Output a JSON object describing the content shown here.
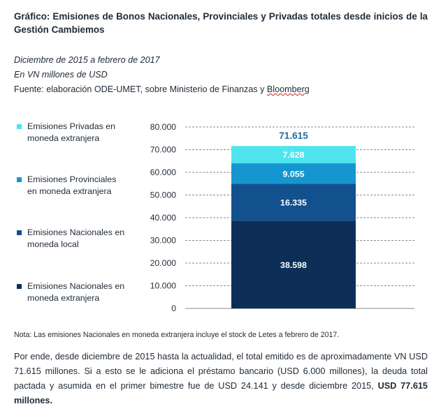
{
  "header": {
    "title": "Gráfico: Emisiones de Bonos Nacionales, Provinciales y Privadas totales desde inicios de la Gestión Cambiemos",
    "period": "Diciembre de 2015 a febrero de 2017",
    "units": "En VN millones de USD",
    "source_prefix": "Fuente: elaboración ODE-UMET, sobre Ministerio de Finanzas y ",
    "source_word": "Bloomberg"
  },
  "chart_data": {
    "type": "bar",
    "stacked": true,
    "categories": [
      ""
    ],
    "series": [
      {
        "name": "Emisiones Nacionales en moneda extranjera",
        "values": [
          38598
        ],
        "label": "38.598",
        "color": "#0d2f57"
      },
      {
        "name": "Emisiones Nacionales en moneda local",
        "values": [
          16335
        ],
        "label": "16.335",
        "color": "#13508e"
      },
      {
        "name": "Emisiones Provinciales en moneda extranjera",
        "values": [
          9055
        ],
        "label": "9.055",
        "color": "#1596cf"
      },
      {
        "name": "Emisiones Privadas en moneda extranjera",
        "values": [
          7628
        ],
        "label": "7.628",
        "color": "#4ee5ef"
      }
    ],
    "total_label": "71.615",
    "ylim": [
      0,
      80000
    ],
    "yticks": [
      0,
      10000,
      20000,
      30000,
      40000,
      50000,
      60000,
      70000,
      80000
    ],
    "ytick_labels": [
      "0",
      "10.000",
      "20.000",
      "30.000",
      "40.000",
      "50.000",
      "60.000",
      "70.000",
      "80.000"
    ],
    "grid": true,
    "legend": "left"
  },
  "legend": [
    {
      "line1": "Emisiones Privadas en",
      "line2": "moneda extranjera",
      "color": "#4ee5ef"
    },
    {
      "line1": "Emisiones Provinciales",
      "line2": "en moneda extranjera",
      "color": "#1596cf"
    },
    {
      "line1": "Emisiones Nacionales en",
      "line2": "moneda local",
      "color": "#13508e"
    },
    {
      "line1": "Emisiones Nacionales en",
      "line2": "moneda extranjera",
      "color": "#0d2f57"
    }
  ],
  "note": "Nota:  Las emisiones Nacionales en moneda extranjera incluye el stock de Letes a febrero de 2017.",
  "paragraph": {
    "text": "Por ende, desde diciembre de 2015 hasta la actualidad, el total emitido es de aproximadamente VN USD 71.615 millones. Si a esto se le adiciona el préstamo bancario (USD 6.000 millones), la deuda total pactada y asumida en el primer bimestre fue de USD 24.141 y desde diciembre 2015,",
    "bold_end": "USD 77.615  millones."
  }
}
